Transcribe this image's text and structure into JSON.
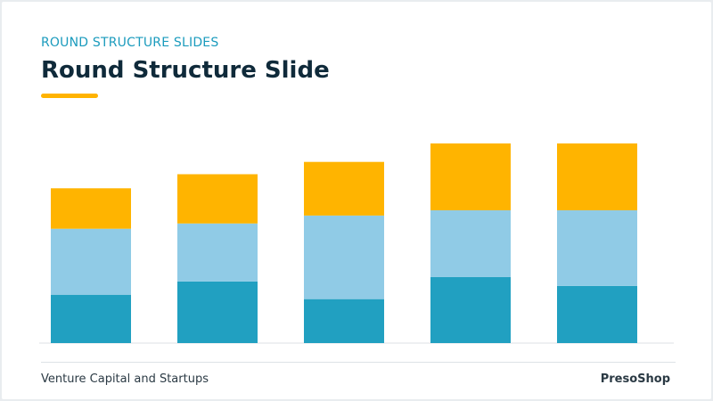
{
  "slide": {
    "eyebrow": "ROUND STRUCTURE SLIDES",
    "title": "Round Structure Slide",
    "footer_left": "Venture Capital and Startups",
    "footer_right": "PresoShop"
  },
  "colors": {
    "accent": "#ffb300",
    "eyebrow": "#1b9bbd",
    "title": "#0f2a3a",
    "segment_bottom": "#21a0c1",
    "segment_middle": "#90cbe6",
    "segment_top": "#ffb400"
  },
  "chart_data": {
    "type": "bar",
    "stacked": true,
    "categories": [
      "",
      "",
      "",
      "",
      ""
    ],
    "series": [
      {
        "values": [
          55,
          70,
          50,
          75,
          65
        ]
      },
      {
        "values": [
          75,
          66,
          95,
          76,
          86
        ]
      },
      {
        "values": [
          46,
          56,
          61,
          76,
          76
        ]
      }
    ],
    "ylim": [
      0,
      230
    ],
    "grid": false,
    "legend": "none"
  }
}
